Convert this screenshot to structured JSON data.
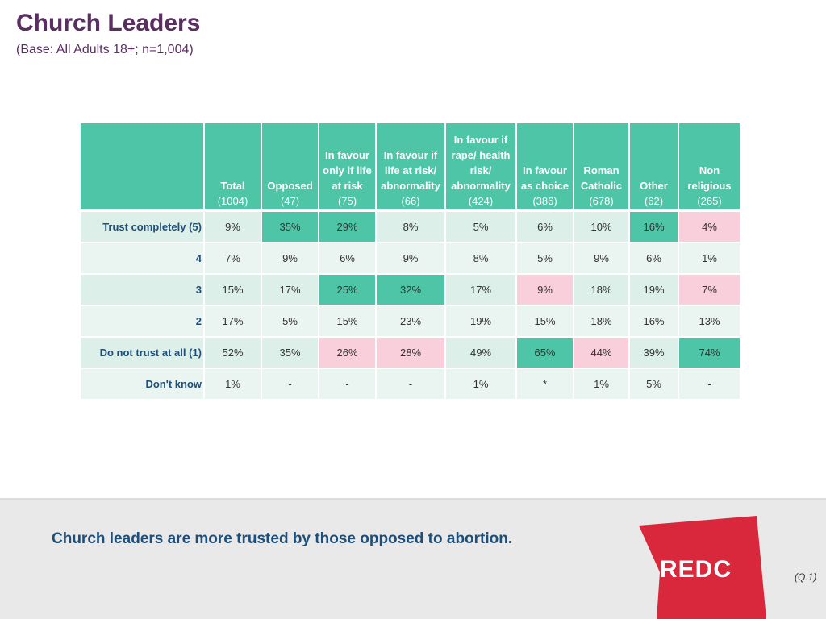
{
  "title": "Church Leaders",
  "subtitle": "(Base: All Adults 18+; n=1,004)",
  "table": {
    "columns": [
      {
        "label": "Total",
        "n": "(1004)"
      },
      {
        "label": "Opposed",
        "n": "(47)"
      },
      {
        "label": "In favour only if life at risk",
        "n": "(75)"
      },
      {
        "label": "In favour if life at risk/ abnormality",
        "n": "(66)"
      },
      {
        "label": "In favour if rape/ health risk/ abnormality",
        "n": "(424)"
      },
      {
        "label": "In favour as choice",
        "n": "(386)"
      },
      {
        "label": "Roman Catholic",
        "n": "(678)"
      },
      {
        "label": "Other",
        "n": "(62)"
      },
      {
        "label": "Non religious",
        "n": "(265)"
      }
    ],
    "rows": [
      {
        "label": "Trust completely (5)",
        "values": [
          "9%",
          "35%",
          "29%",
          "8%",
          "5%",
          "6%",
          "10%",
          "16%",
          "4%"
        ]
      },
      {
        "label": "4",
        "values": [
          "7%",
          "9%",
          "6%",
          "9%",
          "8%",
          "5%",
          "9%",
          "6%",
          "1%"
        ]
      },
      {
        "label": "3",
        "values": [
          "15%",
          "17%",
          "25%",
          "32%",
          "17%",
          "9%",
          "18%",
          "19%",
          "7%"
        ]
      },
      {
        "label": "2",
        "values": [
          "17%",
          "5%",
          "15%",
          "23%",
          "19%",
          "15%",
          "18%",
          "16%",
          "13%"
        ]
      },
      {
        "label": "Do not trust at all (1)",
        "values": [
          "52%",
          "35%",
          "26%",
          "28%",
          "49%",
          "65%",
          "44%",
          "39%",
          "74%"
        ]
      },
      {
        "label": "Don't know",
        "values": [
          "1%",
          "-",
          "-",
          "-",
          "1%",
          "*",
          "1%",
          "5%",
          "-"
        ]
      }
    ]
  },
  "summary": "Church leaders are more trusted by those opposed to abortion.",
  "logo": "REDC",
  "question_ref": "(Q.1)",
  "colors": {
    "header": "#4ec5a6",
    "highlight_green": "#4ec5a6",
    "highlight_pink": "#f8cfda",
    "title": "#5a2d63",
    "label": "#1e4f7a",
    "logo_red": "#d9283b"
  }
}
